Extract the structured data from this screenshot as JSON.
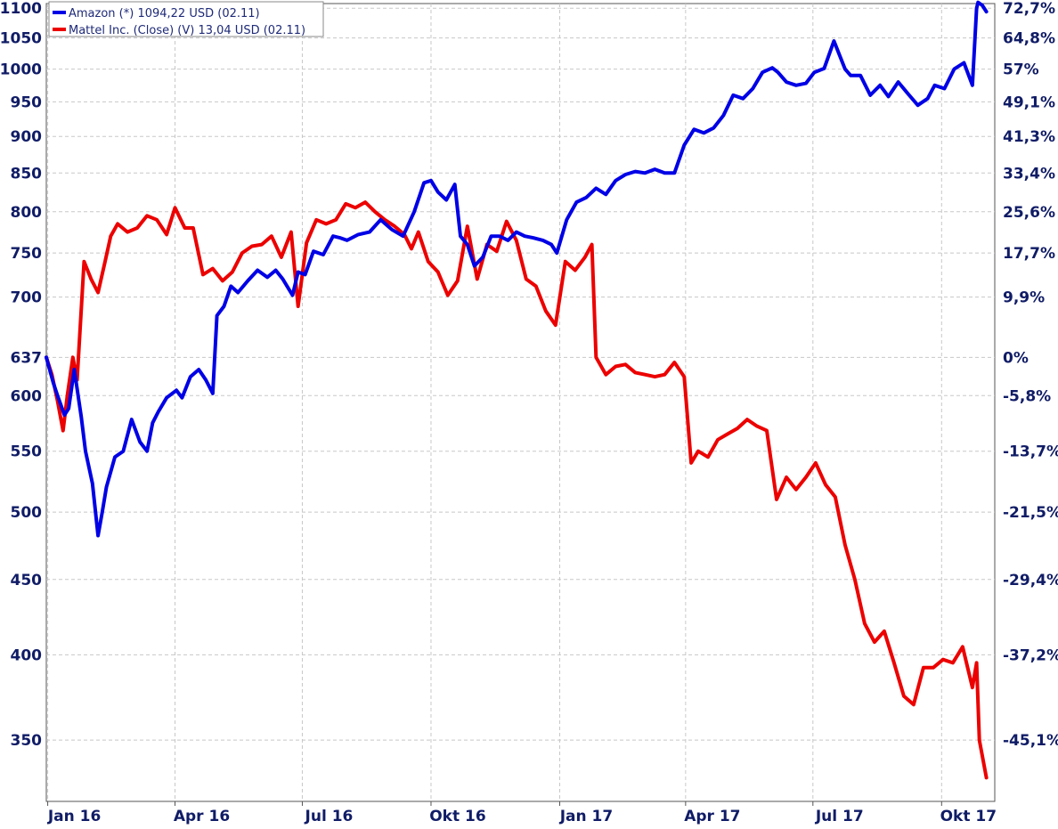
{
  "chart_data": {
    "type": "line",
    "scale": "log",
    "grid": true,
    "legend_position": "top-left",
    "xlabel": "",
    "ylabel": "",
    "y_left_ticks": [
      1100,
      1050,
      1000,
      950,
      900,
      850,
      800,
      750,
      700,
      637,
      600,
      550,
      500,
      450,
      400,
      350
    ],
    "y_left_tick_labels": [
      "1100",
      "1050",
      "1000",
      "950",
      "900",
      "850",
      "800",
      "750",
      "700",
      "637",
      "600",
      "550",
      "500",
      "450",
      "400",
      "350"
    ],
    "y_right_tick_labels": [
      "72,7%",
      "64,8%",
      "57%",
      "49,1%",
      "41,3%",
      "33,4%",
      "25,6%",
      "17,7%",
      "9,9%",
      "0%",
      "-5,8%",
      "-13,7%",
      "-21,5%",
      "-29,4%",
      "-37,2%",
      "-45,1%"
    ],
    "ylim": [
      318,
      1108
    ],
    "x_tick_labels": [
      "Jan 16",
      "Apr 16",
      "Jul 16",
      "Okt 16",
      "Jan 17",
      "Apr 17",
      "Jul 17",
      "Okt 17"
    ],
    "x_tick_dates": [
      "2016-01-01",
      "2016-04-01",
      "2016-07-01",
      "2016-10-01",
      "2017-01-01",
      "2017-04-01",
      "2017-07-01",
      "2017-10-01"
    ],
    "xlim": [
      "2015-12-31",
      "2017-11-08"
    ],
    "series": [
      {
        "name": "Amazon (*) 1094,22 USD (02.11)",
        "color": "#0000e6",
        "x": [
          "2015-12-31",
          "2016-01-05",
          "2016-01-08",
          "2016-01-13",
          "2016-01-16",
          "2016-01-20",
          "2016-01-25",
          "2016-01-28",
          "2016-02-02",
          "2016-02-06",
          "2016-02-09",
          "2016-02-12",
          "2016-02-18",
          "2016-02-24",
          "2016-03-01",
          "2016-03-07",
          "2016-03-12",
          "2016-03-16",
          "2016-03-20",
          "2016-03-26",
          "2016-04-02",
          "2016-04-06",
          "2016-04-12",
          "2016-04-18",
          "2016-04-23",
          "2016-04-28",
          "2016-05-01",
          "2016-05-06",
          "2016-05-11",
          "2016-05-16",
          "2016-05-23",
          "2016-05-30",
          "2016-06-06",
          "2016-06-12",
          "2016-06-17",
          "2016-06-24",
          "2016-06-28",
          "2016-07-03",
          "2016-07-09",
          "2016-07-16",
          "2016-07-23",
          "2016-07-28",
          "2016-08-02",
          "2016-08-10",
          "2016-08-18",
          "2016-08-26",
          "2016-09-03",
          "2016-09-11",
          "2016-09-19",
          "2016-09-26",
          "2016-10-01",
          "2016-10-06",
          "2016-10-12",
          "2016-10-18",
          "2016-10-22",
          "2016-10-27",
          "2016-11-01",
          "2016-11-07",
          "2016-11-13",
          "2016-11-19",
          "2016-11-25",
          "2016-12-01",
          "2016-12-07",
          "2016-12-13",
          "2016-12-20",
          "2016-12-26",
          "2016-12-30",
          "2017-01-06",
          "2017-01-13",
          "2017-01-20",
          "2017-01-27",
          "2017-02-03",
          "2017-02-10",
          "2017-02-17",
          "2017-02-24",
          "2017-03-03",
          "2017-03-10",
          "2017-03-17",
          "2017-03-24",
          "2017-03-31",
          "2017-04-07",
          "2017-04-14",
          "2017-04-21",
          "2017-04-28",
          "2017-05-05",
          "2017-05-12",
          "2017-05-19",
          "2017-05-26",
          "2017-06-02",
          "2017-06-06",
          "2017-06-12",
          "2017-06-19",
          "2017-06-26",
          "2017-07-02",
          "2017-07-09",
          "2017-07-16",
          "2017-07-24",
          "2017-07-28",
          "2017-08-04",
          "2017-08-11",
          "2017-08-18",
          "2017-08-24",
          "2017-08-31",
          "2017-09-07",
          "2017-09-14",
          "2017-09-21",
          "2017-09-26",
          "2017-10-03",
          "2017-10-10",
          "2017-10-17",
          "2017-10-23",
          "2017-10-26",
          "2017-10-27",
          "2017-10-30",
          "2017-11-02"
        ],
        "values": [
          637,
          612,
          600,
          582,
          588,
          625,
          580,
          550,
          523,
          482,
          500,
          520,
          545,
          550,
          578,
          558,
          550,
          575,
          585,
          598,
          605,
          598,
          618,
          625,
          615,
          602,
          680,
          690,
          712,
          705,
          718,
          730,
          722,
          730,
          720,
          702,
          728,
          725,
          752,
          748,
          770,
          768,
          765,
          772,
          775,
          790,
          778,
          770,
          800,
          837,
          840,
          825,
          815,
          835,
          770,
          760,
          735,
          745,
          770,
          770,
          765,
          775,
          770,
          768,
          765,
          760,
          750,
          790,
          812,
          818,
          830,
          822,
          840,
          848,
          852,
          850,
          855,
          850,
          850,
          888,
          910,
          905,
          912,
          930,
          960,
          955,
          970,
          995,
          1002,
          995,
          980,
          975,
          978,
          995,
          1001,
          1045,
          1000,
          990,
          990,
          960,
          975,
          958,
          980,
          962,
          945,
          955,
          975,
          970,
          1000,
          1010,
          975,
          1100,
          1110,
          1105,
          1094
        ]
      },
      {
        "name": "Mattel Inc. (Close) (V) 13,04 USD (02.11)",
        "color": "#ec0000",
        "x": [
          "2015-12-31",
          "2016-01-04",
          "2016-01-08",
          "2016-01-12",
          "2016-01-15",
          "2016-01-19",
          "2016-01-22",
          "2016-01-27",
          "2016-02-01",
          "2016-02-06",
          "2016-02-11",
          "2016-02-15",
          "2016-02-20",
          "2016-02-27",
          "2016-03-05",
          "2016-03-12",
          "2016-03-19",
          "2016-03-26",
          "2016-04-01",
          "2016-04-08",
          "2016-04-14",
          "2016-04-21",
          "2016-04-28",
          "2016-05-05",
          "2016-05-12",
          "2016-05-19",
          "2016-05-26",
          "2016-06-02",
          "2016-06-09",
          "2016-06-16",
          "2016-06-23",
          "2016-06-28",
          "2016-07-04",
          "2016-07-11",
          "2016-07-18",
          "2016-07-25",
          "2016-08-01",
          "2016-08-08",
          "2016-08-15",
          "2016-08-22",
          "2016-08-29",
          "2016-09-05",
          "2016-09-12",
          "2016-09-17",
          "2016-09-22",
          "2016-09-29",
          "2016-10-06",
          "2016-10-13",
          "2016-10-20",
          "2016-10-27",
          "2016-11-03",
          "2016-11-10",
          "2016-11-17",
          "2016-11-24",
          "2016-12-01",
          "2016-12-08",
          "2016-12-15",
          "2016-12-22",
          "2016-12-29",
          "2017-01-05",
          "2017-01-12",
          "2017-01-19",
          "2017-01-24",
          "2017-01-27",
          "2017-02-03",
          "2017-02-10",
          "2017-02-17",
          "2017-02-24",
          "2017-03-03",
          "2017-03-10",
          "2017-03-17",
          "2017-03-24",
          "2017-03-31",
          "2017-04-05",
          "2017-04-10",
          "2017-04-17",
          "2017-04-24",
          "2017-05-01",
          "2017-05-08",
          "2017-05-15",
          "2017-05-22",
          "2017-05-29",
          "2017-06-05",
          "2017-06-12",
          "2017-06-19",
          "2017-06-26",
          "2017-07-03",
          "2017-07-10",
          "2017-07-17",
          "2017-07-24",
          "2017-07-31",
          "2017-08-07",
          "2017-08-14",
          "2017-08-21",
          "2017-08-28",
          "2017-09-04",
          "2017-09-11",
          "2017-09-18",
          "2017-09-25",
          "2017-10-02",
          "2017-10-09",
          "2017-10-16",
          "2017-10-23",
          "2017-10-26",
          "2017-10-28",
          "2017-11-02"
        ],
        "values": [
          637,
          620,
          595,
          568,
          600,
          637,
          615,
          740,
          720,
          705,
          740,
          770,
          785,
          775,
          780,
          795,
          790,
          772,
          805,
          780,
          780,
          725,
          732,
          718,
          728,
          750,
          758,
          760,
          770,
          745,
          775,
          690,
          762,
          790,
          785,
          790,
          810,
          805,
          812,
          800,
          790,
          782,
          772,
          755,
          775,
          740,
          728,
          702,
          718,
          782,
          720,
          760,
          752,
          788,
          765,
          720,
          712,
          685,
          670,
          740,
          730,
          745,
          760,
          637,
          620,
          628,
          630,
          622,
          620,
          618,
          620,
          632,
          618,
          540,
          550,
          545,
          560,
          565,
          570,
          578,
          572,
          568,
          510,
          528,
          518,
          528,
          540,
          522,
          512,
          475,
          450,
          420,
          408,
          415,
          395,
          375,
          370,
          392,
          392,
          397,
          395,
          405,
          380,
          395,
          350,
          330
        ]
      }
    ]
  }
}
